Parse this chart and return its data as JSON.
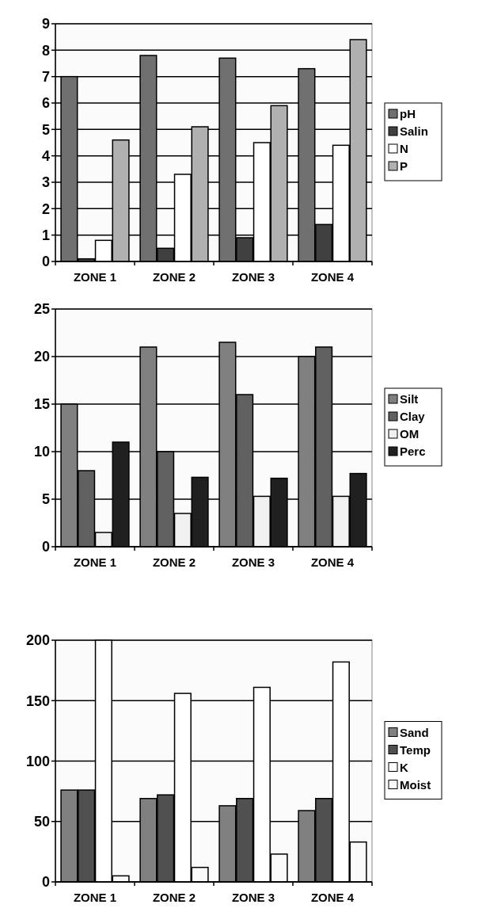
{
  "chart_data": [
    {
      "type": "bar",
      "categories": [
        "ZONE 1",
        "ZONE 2",
        "ZONE 3",
        "ZONE 4"
      ],
      "ylim": [
        0,
        9
      ],
      "yticks": [
        0,
        1,
        2,
        3,
        4,
        5,
        6,
        7,
        8,
        9
      ],
      "grid": "y",
      "legend": "right",
      "series": [
        {
          "name": "pH",
          "color": "#707070",
          "values": [
            7.0,
            7.8,
            7.7,
            7.3
          ]
        },
        {
          "name": "Salin",
          "color": "#404040",
          "values": [
            0.1,
            0.5,
            0.9,
            1.4
          ]
        },
        {
          "name": "N",
          "color": "#ffffff",
          "values": [
            0.8,
            3.3,
            4.5,
            4.4
          ]
        },
        {
          "name": "P",
          "color": "#b0b0b0",
          "values": [
            4.6,
            5.1,
            5.9,
            8.4
          ]
        }
      ]
    },
    {
      "type": "bar",
      "categories": [
        "ZONE 1",
        "ZONE 2",
        "ZONE 3",
        "ZONE 4"
      ],
      "ylim": [
        0,
        25
      ],
      "yticks": [
        0,
        5,
        10,
        15,
        20,
        25
      ],
      "grid": "y",
      "legend": "right",
      "series": [
        {
          "name": "Silt",
          "color": "#808080",
          "values": [
            15,
            21,
            21.5,
            20
          ]
        },
        {
          "name": "Clay",
          "color": "#606060",
          "values": [
            8,
            10,
            16,
            21
          ]
        },
        {
          "name": "OM",
          "color": "#f0f0f0",
          "values": [
            1.5,
            3.5,
            5.3,
            5.3
          ]
        },
        {
          "name": "Perc",
          "color": "#202020",
          "values": [
            11,
            7.3,
            7.2,
            7.7
          ]
        }
      ]
    },
    {
      "type": "bar",
      "categories": [
        "ZONE 1",
        "ZONE 2",
        "ZONE 3",
        "ZONE 4"
      ],
      "ylim": [
        0,
        200
      ],
      "yticks": [
        0,
        50,
        100,
        150,
        200
      ],
      "grid": "y",
      "legend": "right",
      "series": [
        {
          "name": "Sand",
          "color": "#808080",
          "values": [
            76,
            69,
            63,
            59
          ]
        },
        {
          "name": "Temp",
          "color": "#505050",
          "values": [
            76,
            72,
            69,
            69
          ]
        },
        {
          "name": "K",
          "color": "#ffffff",
          "values": [
            200,
            156,
            161,
            182
          ]
        },
        {
          "name": "Moist",
          "color": "#fafafa",
          "values": [
            5,
            12,
            23,
            33
          ]
        }
      ]
    }
  ]
}
